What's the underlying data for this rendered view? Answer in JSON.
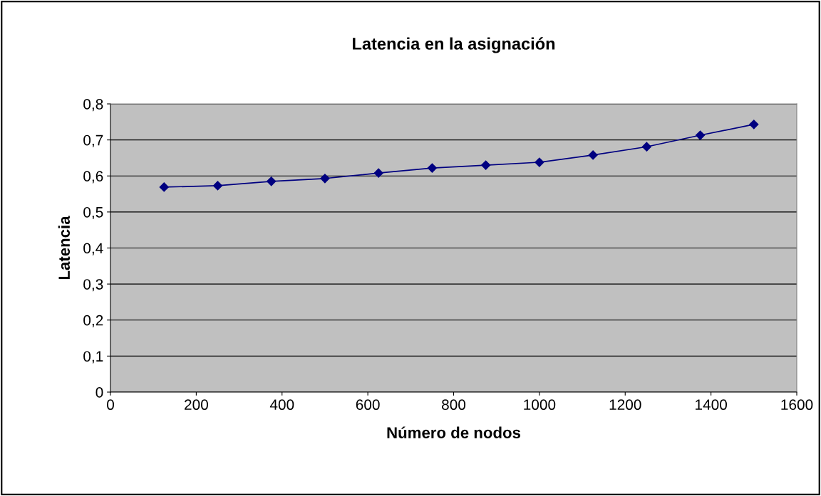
{
  "chart_data": {
    "type": "line",
    "title": "Latencia en la asignación",
    "xlabel": "Número de nodos",
    "ylabel": "Latencia",
    "x": [
      125,
      250,
      375,
      500,
      625,
      750,
      875,
      1000,
      1125,
      1250,
      1375,
      1500
    ],
    "series": [
      {
        "color": "#000080",
        "values": [
          0.569,
          0.573,
          0.585,
          0.593,
          0.608,
          0.622,
          0.63,
          0.638,
          0.658,
          0.681,
          0.713,
          0.743
        ]
      }
    ],
    "xlim": [
      0,
      1600
    ],
    "xticks": [
      0,
      200,
      400,
      600,
      800,
      1000,
      1200,
      1400,
      1600
    ],
    "ylim": [
      0,
      0.8
    ],
    "yticks": [
      0,
      {
        "value": 0.1,
        "label": "0,1"
      },
      {
        "value": 0.2,
        "label": "0,2"
      },
      {
        "value": 0.3,
        "label": "0,3"
      },
      {
        "value": 0.4,
        "label": "0,4"
      },
      {
        "value": 0.5,
        "label": "0,5"
      },
      {
        "value": 0.6,
        "label": "0,6"
      },
      {
        "value": 0.7,
        "label": "0,7"
      },
      {
        "value": 0.8,
        "label": "0,8"
      }
    ],
    "grid": "y",
    "marker": "diamond",
    "line_style": "solid",
    "legend": false
  }
}
